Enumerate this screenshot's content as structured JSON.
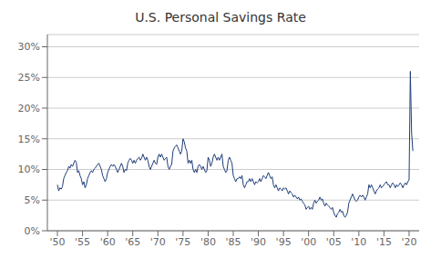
{
  "chart_data": {
    "type": "line",
    "title": "U.S. Personal Savings Rate",
    "color": "#1f3d7a",
    "grid": true,
    "xlim": [
      1948,
      2022
    ],
    "xticks": [
      {
        "value": 1950,
        "label": "'50"
      },
      {
        "value": 1955,
        "label": "'55"
      },
      {
        "value": 1960,
        "label": "'60"
      },
      {
        "value": 1965,
        "label": "'65"
      },
      {
        "value": 1970,
        "label": "'70"
      },
      {
        "value": 1975,
        "label": "'75"
      },
      {
        "value": 1980,
        "label": "'80"
      },
      {
        "value": 1985,
        "label": "'85"
      },
      {
        "value": 1990,
        "label": "'90"
      },
      {
        "value": 1995,
        "label": "'95"
      },
      {
        "value": 2000,
        "label": "'00"
      },
      {
        "value": 2005,
        "label": "'05"
      },
      {
        "value": 2010,
        "label": "'10"
      },
      {
        "value": 2015,
        "label": "'15"
      },
      {
        "value": 2020,
        "label": "'20"
      }
    ],
    "ylim": [
      0,
      32
    ],
    "yticks": [
      {
        "value": 0,
        "label": "0%"
      },
      {
        "value": 5,
        "label": "5%"
      },
      {
        "value": 10,
        "label": "10%"
      },
      {
        "value": 15,
        "label": "15%"
      },
      {
        "value": 20,
        "label": "20%"
      },
      {
        "value": 25,
        "label": "25%"
      },
      {
        "value": 30,
        "label": "30%"
      }
    ],
    "x": [
      1950.0,
      1950.25,
      1950.5,
      1950.75,
      1951.0,
      1951.25,
      1951.5,
      1951.75,
      1952.0,
      1952.25,
      1952.5,
      1952.75,
      1953.0,
      1953.25,
      1953.5,
      1953.75,
      1954.0,
      1954.25,
      1954.5,
      1954.75,
      1955.0,
      1955.25,
      1955.5,
      1955.75,
      1956.0,
      1956.25,
      1956.5,
      1956.75,
      1957.0,
      1957.25,
      1957.5,
      1957.75,
      1958.0,
      1958.25,
      1958.5,
      1958.75,
      1959.0,
      1959.25,
      1959.5,
      1959.75,
      1960.0,
      1960.25,
      1960.5,
      1960.75,
      1961.0,
      1961.25,
      1961.5,
      1961.75,
      1962.0,
      1962.25,
      1962.5,
      1962.75,
      1963.0,
      1963.25,
      1963.5,
      1963.75,
      1964.0,
      1964.25,
      1964.5,
      1964.75,
      1965.0,
      1965.25,
      1965.5,
      1965.75,
      1966.0,
      1966.25,
      1966.5,
      1966.75,
      1967.0,
      1967.25,
      1967.5,
      1967.75,
      1968.0,
      1968.25,
      1968.5,
      1968.75,
      1969.0,
      1969.25,
      1969.5,
      1969.75,
      1970.0,
      1970.25,
      1970.5,
      1970.75,
      1971.0,
      1971.25,
      1971.5,
      1971.75,
      1972.0,
      1972.25,
      1972.5,
      1972.75,
      1973.0,
      1973.25,
      1973.5,
      1973.75,
      1974.0,
      1974.25,
      1974.5,
      1974.75,
      1975.0,
      1975.25,
      1975.5,
      1975.75,
      1976.0,
      1976.25,
      1976.5,
      1976.75,
      1977.0,
      1977.25,
      1977.5,
      1977.75,
      1978.0,
      1978.25,
      1978.5,
      1978.75,
      1979.0,
      1979.25,
      1979.5,
      1979.75,
      1980.0,
      1980.25,
      1980.5,
      1980.75,
      1981.0,
      1981.25,
      1981.5,
      1981.75,
      1982.0,
      1982.25,
      1982.5,
      1982.75,
      1983.0,
      1983.25,
      1983.5,
      1983.75,
      1984.0,
      1984.25,
      1984.5,
      1984.75,
      1985.0,
      1985.25,
      1985.5,
      1985.75,
      1986.0,
      1986.25,
      1986.5,
      1986.75,
      1987.0,
      1987.25,
      1987.5,
      1987.75,
      1988.0,
      1988.25,
      1988.5,
      1988.75,
      1989.0,
      1989.25,
      1989.5,
      1989.75,
      1990.0,
      1990.25,
      1990.5,
      1990.75,
      1991.0,
      1991.25,
      1991.5,
      1991.75,
      1992.0,
      1992.25,
      1992.5,
      1992.75,
      1993.0,
      1993.25,
      1993.5,
      1993.75,
      1994.0,
      1994.25,
      1994.5,
      1994.75,
      1995.0,
      1995.25,
      1995.5,
      1995.75,
      1996.0,
      1996.25,
      1996.5,
      1996.75,
      1997.0,
      1997.25,
      1997.5,
      1997.75,
      1998.0,
      1998.25,
      1998.5,
      1998.75,
      1999.0,
      1999.25,
      1999.5,
      1999.75,
      2000.0,
      2000.25,
      2000.5,
      2000.75,
      2001.0,
      2001.25,
      2001.5,
      2001.75,
      2002.0,
      2002.25,
      2002.5,
      2002.75,
      2003.0,
      2003.25,
      2003.5,
      2003.75,
      2004.0,
      2004.25,
      2004.5,
      2004.75,
      2005.0,
      2005.25,
      2005.5,
      2005.75,
      2006.0,
      2006.25,
      2006.5,
      2006.75,
      2007.0,
      2007.25,
      2007.5,
      2007.75,
      2008.0,
      2008.25,
      2008.5,
      2008.75,
      2009.0,
      2009.25,
      2009.5,
      2009.75,
      2010.0,
      2010.25,
      2010.5,
      2010.75,
      2011.0,
      2011.25,
      2011.5,
      2011.75,
      2012.0,
      2012.25,
      2012.5,
      2012.75,
      2013.0,
      2013.25,
      2013.5,
      2013.75,
      2014.0,
      2014.25,
      2014.5,
      2014.75,
      2015.0,
      2015.25,
      2015.5,
      2015.75,
      2016.0,
      2016.25,
      2016.5,
      2016.75,
      2017.0,
      2017.25,
      2017.5,
      2017.75,
      2018.0,
      2018.25,
      2018.5,
      2018.75,
      2019.0,
      2019.25,
      2019.5,
      2019.75,
      2020.0,
      2020.25,
      2020.5,
      2020.75
    ],
    "values": [
      7.5,
      6.5,
      7.0,
      6.8,
      7.2,
      8.5,
      9.0,
      9.5,
      9.8,
      10.5,
      10.2,
      10.8,
      10.5,
      11.0,
      11.5,
      11.2,
      9.5,
      9.8,
      9.0,
      8.5,
      7.5,
      8.0,
      7.0,
      7.5,
      8.5,
      9.0,
      9.5,
      9.8,
      9.5,
      10.0,
      10.2,
      10.5,
      10.8,
      11.0,
      10.5,
      10.0,
      9.0,
      8.5,
      8.0,
      8.5,
      9.5,
      10.0,
      10.5,
      10.8,
      10.5,
      10.8,
      10.5,
      10.0,
      9.5,
      10.0,
      10.5,
      11.0,
      10.5,
      9.5,
      10.0,
      9.8,
      11.0,
      11.5,
      11.8,
      11.5,
      11.0,
      11.5,
      11.0,
      11.5,
      11.8,
      12.0,
      11.5,
      11.8,
      12.5,
      12.0,
      11.5,
      12.0,
      11.5,
      10.5,
      10.0,
      10.5,
      11.0,
      11.5,
      11.0,
      10.8,
      12.0,
      12.5,
      12.0,
      12.5,
      12.0,
      11.5,
      11.8,
      12.0,
      10.5,
      10.0,
      10.5,
      10.8,
      13.0,
      13.5,
      13.8,
      14.0,
      13.5,
      13.0,
      12.5,
      13.0,
      15.0,
      14.5,
      13.5,
      13.0,
      11.0,
      11.5,
      11.0,
      11.5,
      10.0,
      9.5,
      10.0,
      9.5,
      10.5,
      10.8,
      10.5,
      10.0,
      10.5,
      10.0,
      9.5,
      9.8,
      12.0,
      11.5,
      10.5,
      11.0,
      12.0,
      12.5,
      12.0,
      11.5,
      12.0,
      11.5,
      12.0,
      12.5,
      10.5,
      10.0,
      9.5,
      9.8,
      11.5,
      12.0,
      11.5,
      11.0,
      9.0,
      8.5,
      8.0,
      8.5,
      8.5,
      8.8,
      8.5,
      9.0,
      7.5,
      7.0,
      7.5,
      8.0,
      8.0,
      8.5,
      8.0,
      8.5,
      8.0,
      7.5,
      8.0,
      7.8,
      8.0,
      8.5,
      8.0,
      8.5,
      9.0,
      8.8,
      8.5,
      9.0,
      9.5,
      9.0,
      8.5,
      8.8,
      7.5,
      7.0,
      7.5,
      7.0,
      6.5,
      7.0,
      6.8,
      6.5,
      7.0,
      6.8,
      7.0,
      6.5,
      6.0,
      6.5,
      6.2,
      6.0,
      5.5,
      5.8,
      5.5,
      5.2,
      5.5,
      5.0,
      5.2,
      4.8,
      4.5,
      4.2,
      3.5,
      3.8,
      4.0,
      3.5,
      3.8,
      3.5,
      4.5,
      5.0,
      4.5,
      4.8,
      5.0,
      5.5,
      5.0,
      5.2,
      4.5,
      4.0,
      4.5,
      4.2,
      4.0,
      3.8,
      3.5,
      3.8,
      3.0,
      2.5,
      2.2,
      2.8,
      3.0,
      3.5,
      3.0,
      3.2,
      2.5,
      2.2,
      2.5,
      3.0,
      4.5,
      5.0,
      5.5,
      6.0,
      5.5,
      5.0,
      4.8,
      5.0,
      5.5,
      5.8,
      5.5,
      5.8,
      5.5,
      5.0,
      5.5,
      6.0,
      7.5,
      7.0,
      7.5,
      7.0,
      6.5,
      6.0,
      6.5,
      6.8,
      7.0,
      7.5,
      7.0,
      7.2,
      7.5,
      7.8,
      8.0,
      7.5,
      7.5,
      7.0,
      7.5,
      7.8,
      7.5,
      7.0,
      7.5,
      7.2,
      7.5,
      7.8,
      7.5,
      7.0,
      7.5,
      7.8,
      7.5,
      8.0,
      8.3,
      26.0,
      16.0,
      13.0
    ]
  }
}
